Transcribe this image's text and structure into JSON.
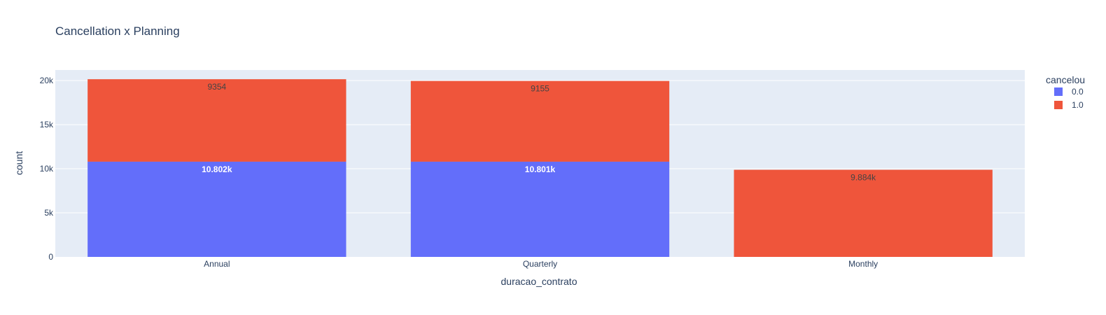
{
  "chart_data": {
    "type": "bar",
    "title": "Cancellation x Planning",
    "xlabel": "duracao_contrato",
    "ylabel": "count",
    "categories": [
      "Annual",
      "Quarterly",
      "Monthly"
    ],
    "series": [
      {
        "name": "0.0",
        "values": [
          10802,
          10801,
          0
        ],
        "labels": [
          "10.802k",
          "10.801k",
          ""
        ],
        "color": "#636efa",
        "label_color": "#ffffff"
      },
      {
        "name": "1.0",
        "values": [
          9354,
          9155,
          9884
        ],
        "labels": [
          "9354",
          "9155",
          "9.884k"
        ],
        "color": "#ef553b",
        "label_color": "#444444"
      }
    ],
    "stacked": true,
    "ylim": [
      0,
      21200
    ],
    "yticks": [
      0,
      5000,
      10000,
      15000,
      20000
    ],
    "ytick_labels": [
      "0",
      "5k",
      "10k",
      "15k",
      "20k"
    ],
    "grid": true,
    "legend": {
      "title": "cancelou",
      "placement": "top-right"
    },
    "colors": {
      "plot_bg": "#e5ecf6",
      "grid": "#ffffff",
      "text": "#2a3f5f"
    }
  }
}
